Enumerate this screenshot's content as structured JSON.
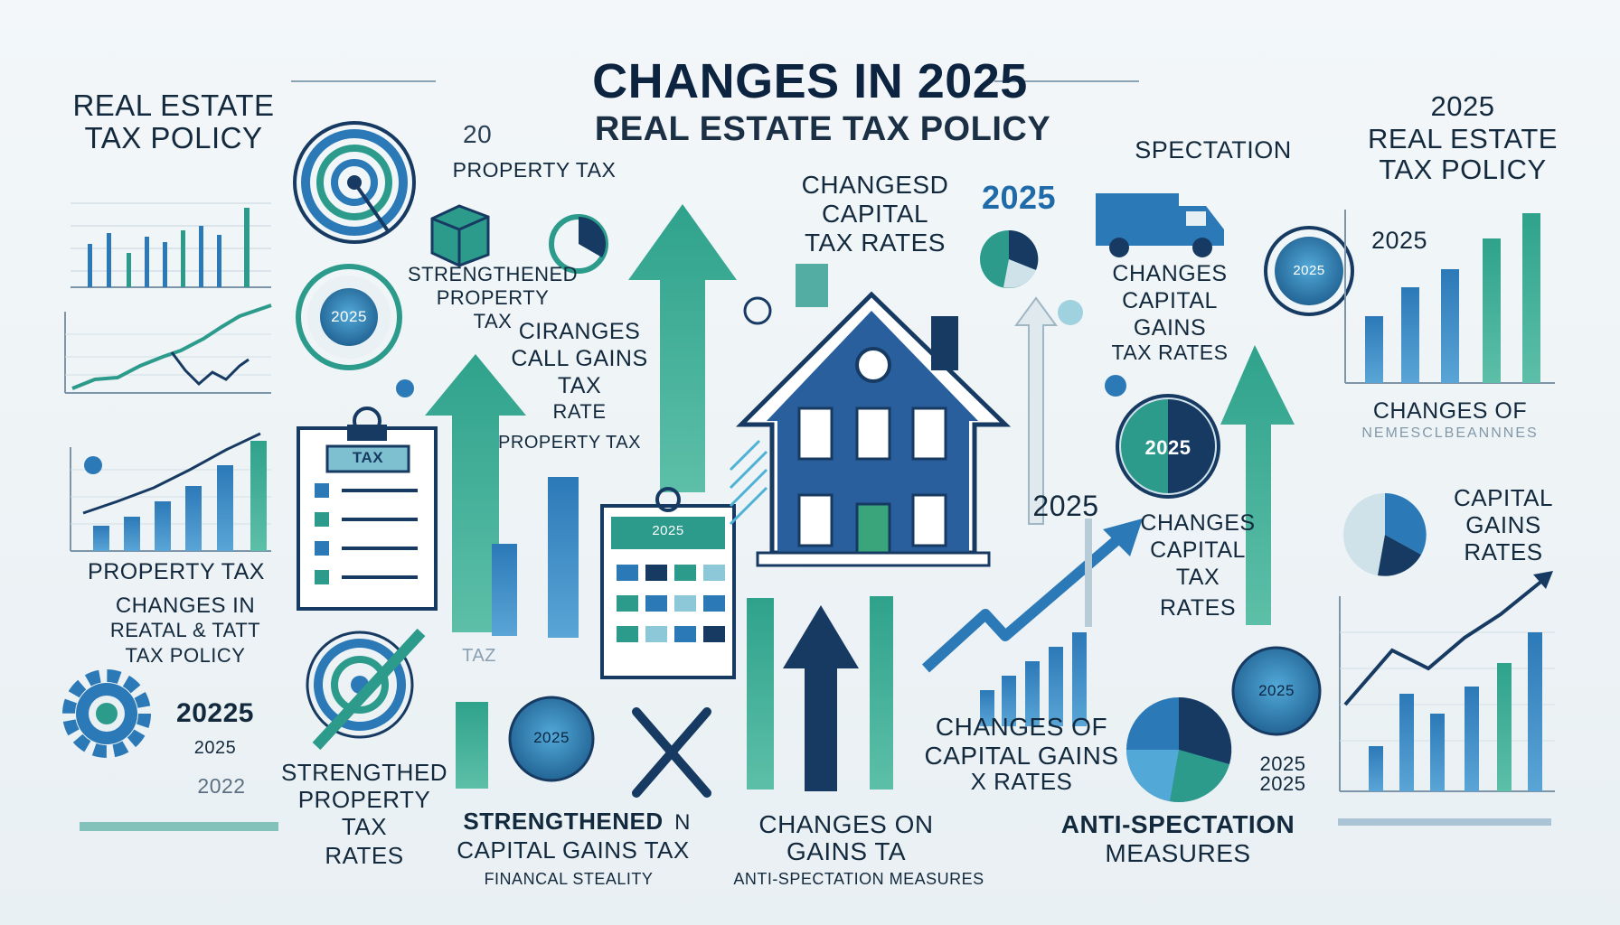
{
  "title": "CHANGES IN 2025",
  "subtitle": "REAL ESTATE TAX POLICY",
  "top_left_small": "20",
  "labels": {
    "left_heading": [
      "REAL ESTATE",
      "TAX POLICY"
    ],
    "property_tax_top": "PROPERTY TAX",
    "changes_capital_tax_rates_top": [
      "CHANGESD",
      "CAPITAL",
      "TAX RATES"
    ],
    "year_top": "2025",
    "spectation": "SPECTATION",
    "right_heading": [
      "2025",
      "REAL ESTATE",
      "TAX POLICY"
    ],
    "strengthened_property_tax_mid": [
      "STRENGTHENED",
      "PROPERTY",
      "TAX"
    ],
    "changes_call_gains": [
      "CIRANGES",
      "CALL GAINS",
      "TAX",
      "RATE"
    ],
    "property_tax_mid": "PROPERTY TAX",
    "changes_capital_gains_right": [
      "CHANGES",
      "CAPITAL",
      "GAINS",
      "TAX RATES"
    ],
    "changes_of_right": "CHANGES OF",
    "changes_of_right_blur": "NEMESCLBEANNNES",
    "capital_gains_rates": [
      "CAPITAL",
      "GAINS",
      "RATES"
    ],
    "year_mid_2025": "2025",
    "changes_capital_tax_rates_mid": [
      "CHANGES",
      "CAPITAL",
      "TAX",
      "RATES"
    ],
    "property_tax_left": "PROPERTY TAX",
    "changes_in_left": [
      "CHANGES IN",
      "REATAL & TATT",
      "TAX POLICY"
    ],
    "years_gear": [
      "20225",
      "2025",
      "2022"
    ],
    "strengthed_property_tax_rates": [
      "STRENGTHED",
      "PROPERTY",
      "TAX",
      "RATES"
    ],
    "strengthened_capital_gains": [
      "STRENGTHENED",
      "CAPITAL GAINS TAX"
    ],
    "strengthened_n": "N",
    "financal_stability": "FINANCAL STEALITY",
    "changes_on_gains": [
      "CHANGES ON",
      "GAINS TA"
    ],
    "anti_specation_small": "ANTI-SPECTATION MEASURES",
    "changes_of_capital_gains": [
      "CHANGES OF",
      "CAPITAL GAINS",
      "X RATES"
    ],
    "anti_specation_measures": [
      "ANTI-SPECTATION",
      "MEASURES"
    ],
    "years_bottom_right": [
      "2025",
      "2025"
    ],
    "chart_right_year": "2025",
    "badges": [
      "2025",
      "2025",
      "2025",
      "2025",
      "2025",
      "2025",
      "2025"
    ],
    "tax_tag": "TAX",
    "clip_year": "2025",
    "taz_fragment": "TAZ"
  },
  "colors": {
    "navy": "#173a63",
    "blue": "#2c79b8",
    "teal": "#2c9b8c",
    "green": "#3aa57b",
    "ink": "#13293d",
    "pale": "#cfe2ea"
  }
}
